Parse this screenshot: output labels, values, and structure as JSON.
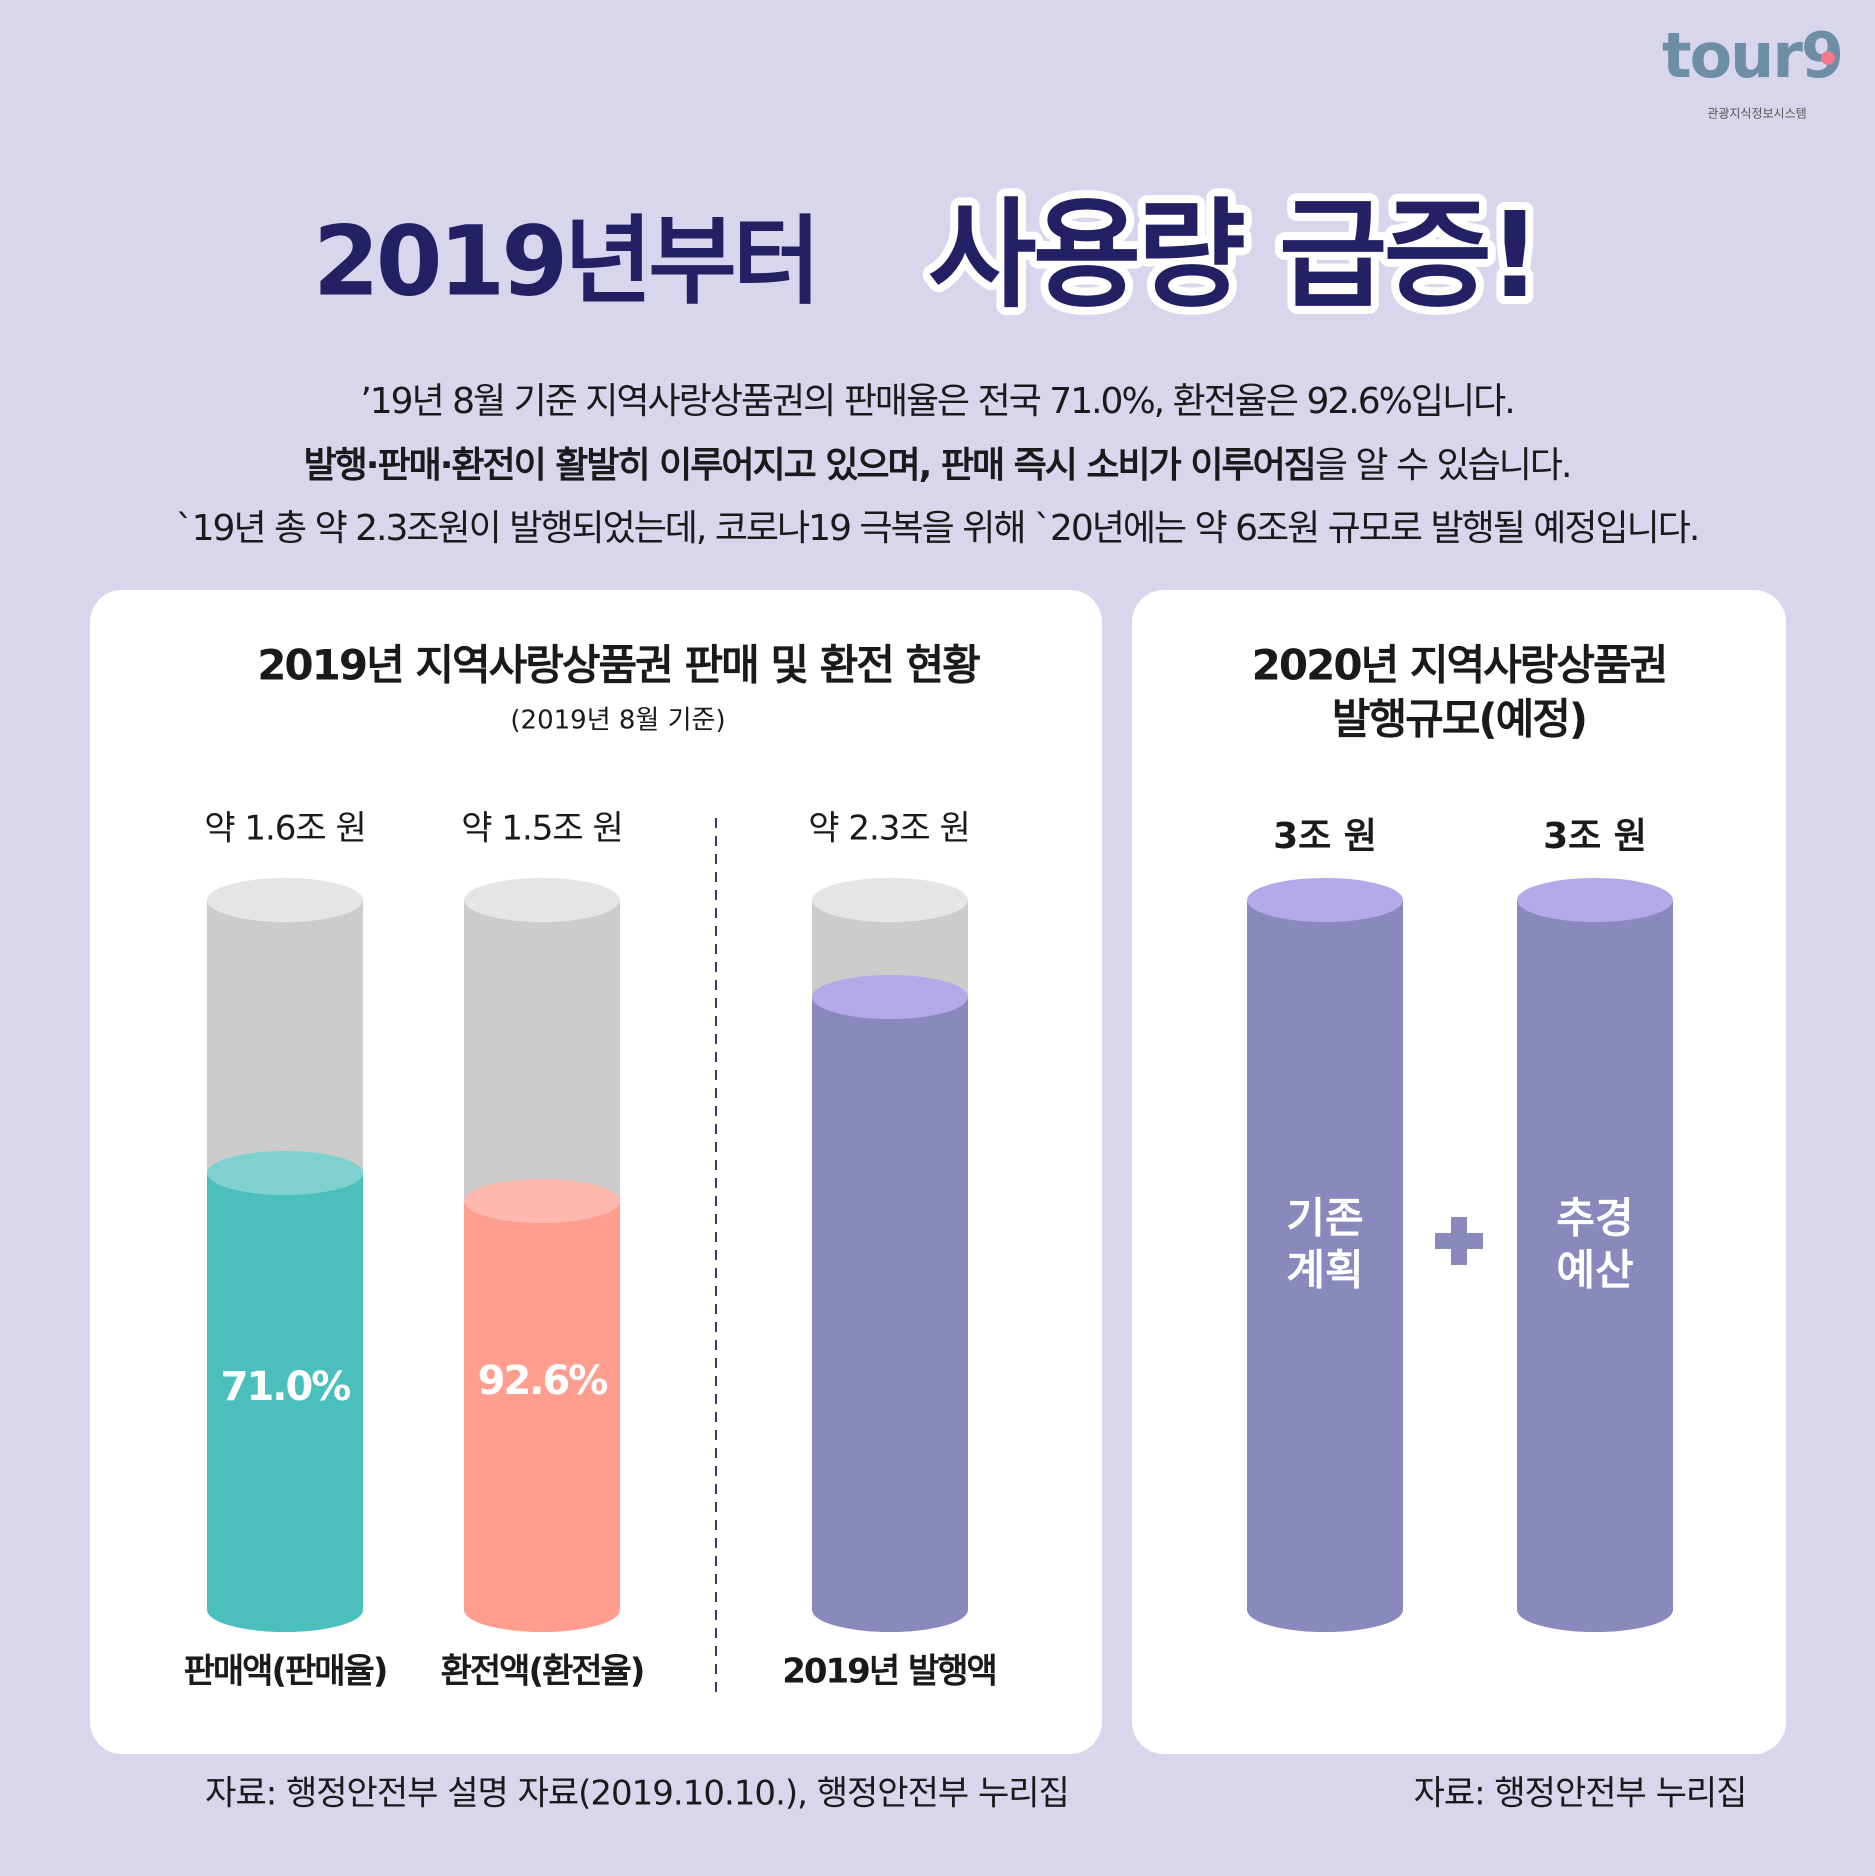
{
  "logo": {
    "brand": "tour9",
    "subtitle": "관광지식정보시스템"
  },
  "header": {
    "title_part1": "2019년부터",
    "title_part2": "사용량 급증!"
  },
  "intro": {
    "line1": "’19년 8월 기준 지역사랑상품권의 판매율은 전국 71.0%, 환전율은 92.6%입니다.",
    "line2_bold": "발행·판매·환전이 활발히 이루어지고 있으며, 판매 즉시 소비가 이루어짐",
    "line2_rest": "을 알 수 있습니다.",
    "line3": "`19년 총 약 2.3조원이 발행되었는데, 코로나19 극복을 위해 `20년에는 약 6조원 규모로 발행될 예정입니다."
  },
  "left_panel": {
    "title": "2019년 지역사랑상품권 판매 및 환전 현황",
    "subtitle": "(2019년 8월 기준)",
    "columns": [
      {
        "amount": "약 1.6조 원",
        "rate": "71.0%",
        "label": "판매액(판매율)"
      },
      {
        "amount": "약 1.5조 원",
        "rate": "92.6%",
        "label": "환전액(환전율)"
      },
      {
        "amount": "약 2.3조 원",
        "label": "2019년 발행액"
      }
    ],
    "source": "자료: 행정안전부 설명 자료(2019.10.10.), 행정안전부 누리집"
  },
  "right_panel": {
    "title_lines": [
      "2020년 지역사랑상품권",
      "발행규모(예정)"
    ],
    "columns": [
      {
        "amount": "3조 원",
        "label_lines": [
          "기존",
          "계획"
        ]
      },
      {
        "amount": "3조 원",
        "label_lines": [
          "추경",
          "예산"
        ]
      }
    ],
    "source": "자료: 행정안전부 누리집"
  }
}
